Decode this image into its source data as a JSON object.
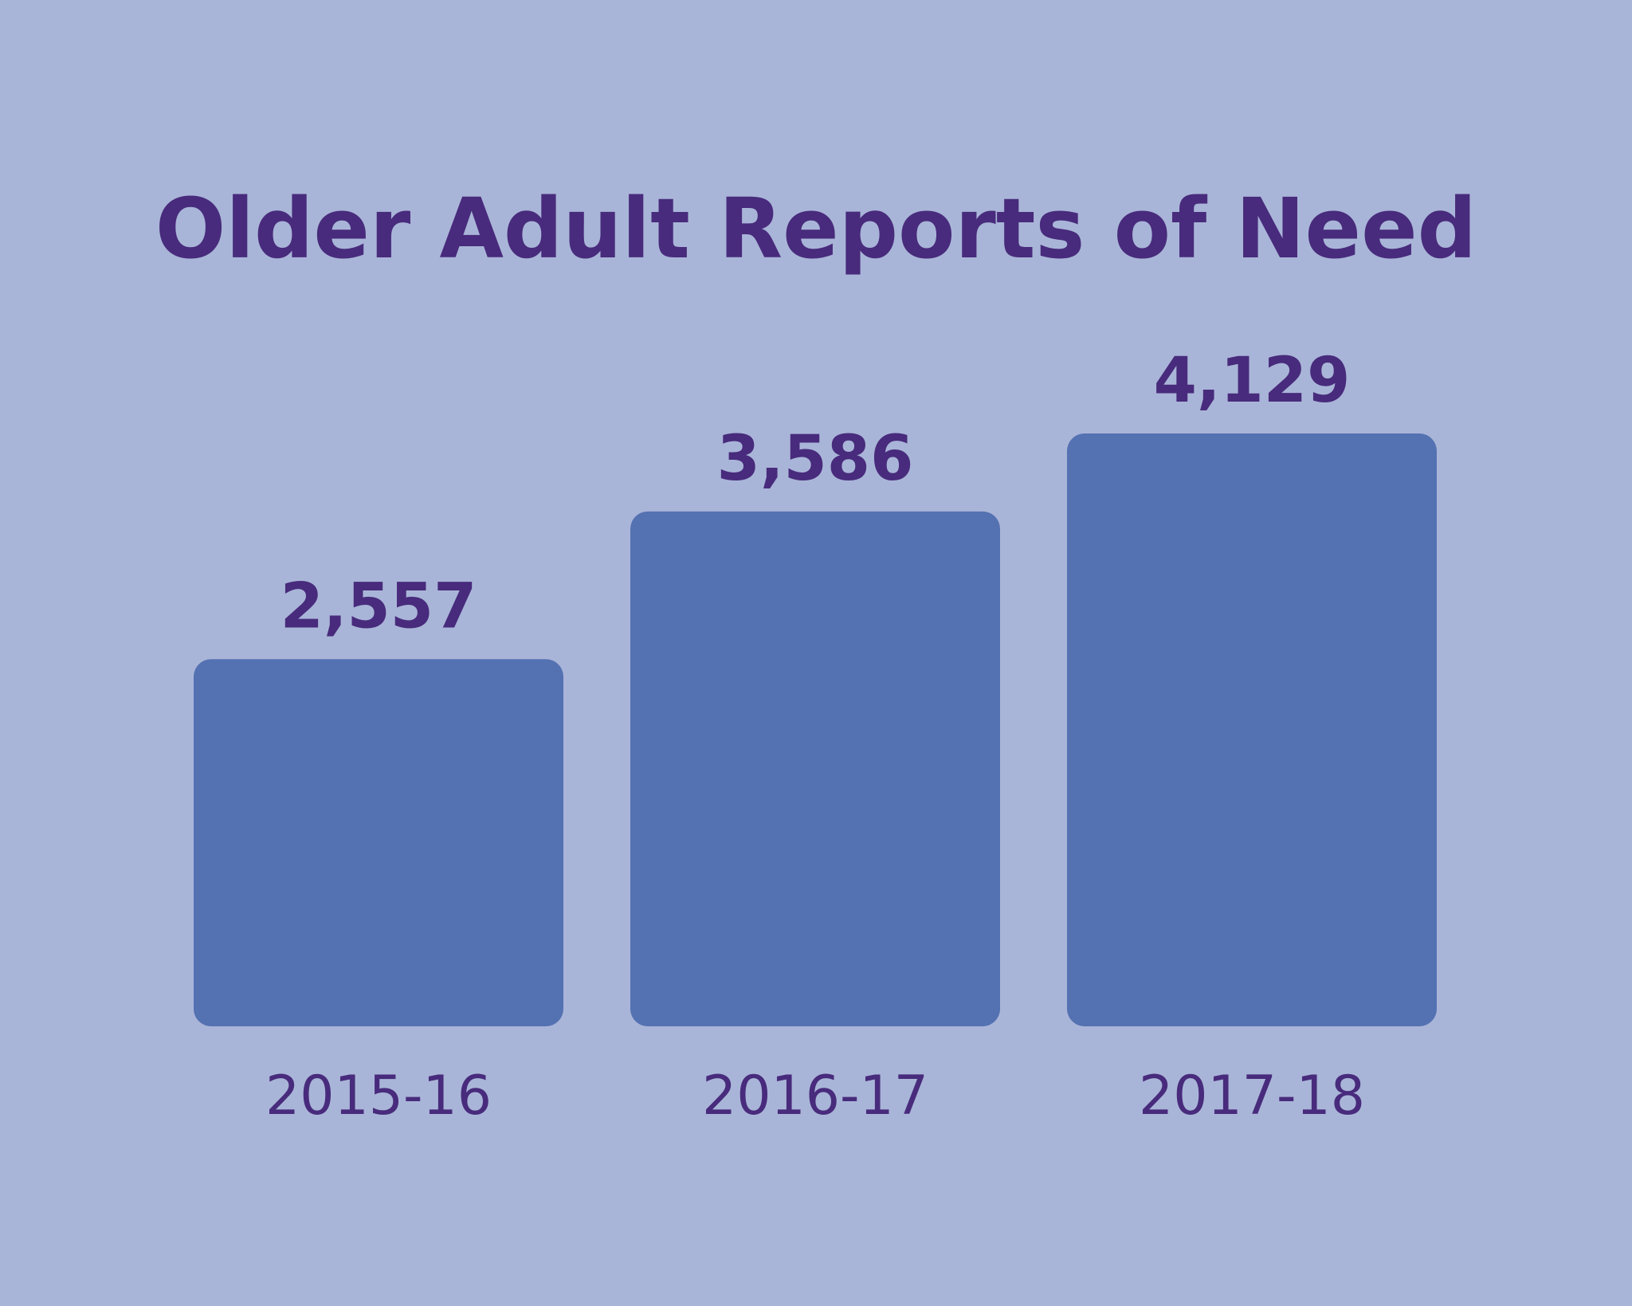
{
  "colors": {
    "background": "#A9B5D8",
    "bar": "#5471B2",
    "text": "#482B7C"
  },
  "chart_data": {
    "type": "bar",
    "title": "Older Adult Reports of Need",
    "categories": [
      "2015-16",
      "2016-17",
      "2017-18"
    ],
    "values": [
      2557,
      3586,
      4129
    ],
    "value_labels": [
      "2,557",
      "3,586",
      "4,129"
    ],
    "ylim": [
      0,
      4129
    ],
    "grid": false,
    "legend": "none",
    "xlabel": "",
    "ylabel": ""
  }
}
